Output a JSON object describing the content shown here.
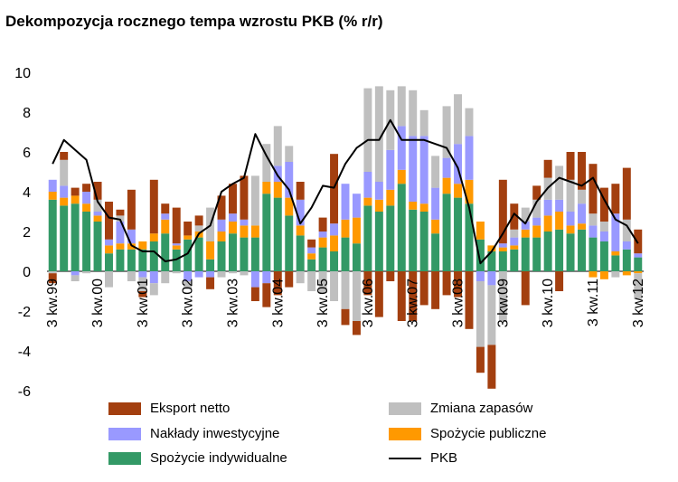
{
  "title": "Dekompozycja rocznego tempa wzrostu PKB (% r/r)",
  "colors": {
    "eksport": "#A33F0F",
    "zapasy": "#BFBFBF",
    "naklady": "#9999FF",
    "publiczne": "#FF9900",
    "indywidualne": "#339966",
    "pkb": "#000000"
  },
  "legend": [
    {
      "key": "eksport",
      "label": "Eksport netto"
    },
    {
      "key": "zapasy",
      "label": "Zmiana zapasów"
    },
    {
      "key": "naklady",
      "label": "Nakłady inwestycyjne"
    },
    {
      "key": "publiczne",
      "label": "Spożycie publiczne"
    },
    {
      "key": "indywidualne",
      "label": "Spożycie indywidualne"
    },
    {
      "key": "pkb",
      "label": "PKB"
    }
  ],
  "chart_data": {
    "type": "bar",
    "stacked": true,
    "title": "Dekompozycja rocznego tempa wzrostu PKB (% r/r)",
    "ylim": [
      -6,
      10
    ],
    "yticks": [
      -6,
      -4,
      -2,
      0,
      2,
      4,
      6,
      8,
      10
    ],
    "xtick_labels": [
      "3 kw.99",
      "3 kw.00",
      "3 kw.01",
      "3 kw.02",
      "3 kw.03",
      "3 kw.04",
      "3 kw.05",
      "3 kw.06",
      "3 kw.07",
      "3 kw.08",
      "3 kw.09",
      "3 kw.10",
      "3 kw.11",
      "3 kw.12"
    ],
    "xtick_every": 4,
    "categories": [
      "3 kw.99",
      "4 kw.99",
      "1 kw.00",
      "2 kw.00",
      "3 kw.00",
      "4 kw.00",
      "1 kw.01",
      "2 kw.01",
      "3 kw.01",
      "4 kw.01",
      "1 kw.02",
      "2 kw.02",
      "3 kw.02",
      "4 kw.02",
      "1 kw.03",
      "2 kw.03",
      "3 kw.03",
      "4 kw.03",
      "1 kw.04",
      "2 kw.04",
      "3 kw.04",
      "4 kw.04",
      "1 kw.05",
      "2 kw.05",
      "3 kw.05",
      "4 kw.05",
      "1 kw.06",
      "2 kw.06",
      "3 kw.06",
      "4 kw.06",
      "1 kw.07",
      "2 kw.07",
      "3 kw.07",
      "4 kw.07",
      "1 kw.08",
      "2 kw.08",
      "3 kw.08",
      "4 kw.08",
      "1 kw.09",
      "2 kw.09",
      "3 kw.09",
      "4 kw.09",
      "1 kw.10",
      "2 kw.10",
      "3 kw.10",
      "4 kw.10",
      "1 kw.11",
      "2 kw.11",
      "3 kw.11",
      "4 kw.11",
      "1 kw.12",
      "2 kw.12",
      "3 kw.12"
    ],
    "series": [
      {
        "name": "Spożycie indywidualne",
        "key": "indywidualne",
        "values": [
          3.6,
          3.3,
          3.4,
          3.0,
          2.5,
          0.9,
          1.1,
          1.1,
          1.1,
          1.5,
          1.9,
          1.1,
          1.6,
          1.7,
          0.6,
          1.5,
          1.9,
          1.7,
          1.7,
          3.9,
          3.7,
          2.8,
          1.8,
          0.6,
          1.2,
          1.0,
          1.7,
          1.4,
          3.3,
          3.0,
          3.3,
          4.4,
          3.1,
          3.0,
          1.9,
          3.9,
          3.7,
          3.4,
          1.6,
          1.0,
          1.0,
          1.1,
          1.7,
          1.7,
          2.0,
          2.1,
          1.9,
          2.1,
          1.7,
          1.5,
          0.8,
          1.1,
          0.7
        ]
      },
      {
        "name": "Spożycie publiczne",
        "key": "publiczne",
        "values": [
          0.4,
          0.4,
          0.4,
          0.4,
          0.3,
          0.4,
          0.3,
          0.3,
          0.4,
          0.4,
          0.7,
          0.2,
          0.2,
          0.3,
          0.9,
          0.5,
          0.6,
          0.6,
          0.6,
          0.6,
          0.8,
          0.9,
          0.5,
          0.3,
          0.5,
          0.8,
          0.9,
          1.3,
          0.4,
          0.6,
          0.8,
          0.7,
          0.4,
          0.4,
          0.7,
          0.8,
          0.7,
          1.2,
          0.9,
          0.3,
          0.2,
          0.2,
          0.4,
          0.6,
          0.8,
          0.9,
          0.4,
          0.3,
          -0.3,
          -0.4,
          0.2,
          -0.2,
          -0.1
        ]
      },
      {
        "name": "Nakłady inwestycyjne",
        "key": "naklady",
        "values": [
          0.6,
          0.6,
          -0.2,
          0.6,
          0.2,
          0.3,
          1.1,
          0.7,
          -0.3,
          -0.6,
          0.3,
          0.1,
          -0.5,
          -0.3,
          -0.3,
          0.6,
          0.4,
          0.3,
          -0.8,
          -0.6,
          0.8,
          1.8,
          1.3,
          0.3,
          0.3,
          0.6,
          1.8,
          1.2,
          1.3,
          0.9,
          2.0,
          2.2,
          3.3,
          3.4,
          1.6,
          1.0,
          2.0,
          2.2,
          -0.5,
          -0.7,
          0.2,
          0.4,
          0.4,
          0.4,
          0.8,
          0.6,
          0.7,
          1.0,
          0.6,
          0.5,
          1.9,
          0.4,
          0.2
        ]
      },
      {
        "name": "Zmiana zapasów",
        "key": "zapasy",
        "values": [
          -0.1,
          1.3,
          -0.3,
          -0.1,
          0.6,
          -0.8,
          0.3,
          -0.5,
          -0.7,
          -0.6,
          -0.6,
          -0.1,
          -0.4,
          0.3,
          1.7,
          -0.3,
          -0.1,
          -0.2,
          2.5,
          1.9,
          2.0,
          0.8,
          -0.6,
          -1.0,
          -1.1,
          -1.5,
          -1.9,
          -2.5,
          4.2,
          4.8,
          3.0,
          2.0,
          2.3,
          1.3,
          1.6,
          2.6,
          2.5,
          1.4,
          -3.3,
          -3.0,
          -2.5,
          0.4,
          0.7,
          0.9,
          1.1,
          1.7,
          1.6,
          0.7,
          0.6,
          0.5,
          -0.3,
          1.1,
          -1.3
        ]
      },
      {
        "name": "Eksport netto",
        "key": "eksport",
        "values": [
          -0.5,
          0.4,
          0.4,
          0.4,
          0.9,
          1.9,
          0.3,
          2.0,
          -0.3,
          2.7,
          0.5,
          1.8,
          0.7,
          0.5,
          -0.6,
          1.2,
          1.5,
          2.2,
          -0.7,
          -1.2,
          -1.2,
          -0.8,
          0.9,
          0.4,
          0.7,
          3.5,
          -0.8,
          -0.7,
          -1.2,
          -2.3,
          -0.5,
          -2.5,
          -2.5,
          -1.7,
          -1.9,
          -1.2,
          -1.3,
          -2.9,
          -1.3,
          -2.2,
          3.2,
          1.3,
          -1.7,
          0.7,
          0.9,
          -1.0,
          1.4,
          1.9,
          2.5,
          1.7,
          1.5,
          2.6,
          1.2
        ]
      }
    ],
    "line": {
      "name": "PKB",
      "key": "pkb",
      "values": [
        5.4,
        6.6,
        6.1,
        5.6,
        3.5,
        2.7,
        2.6,
        1.3,
        1.0,
        1.0,
        0.5,
        0.6,
        0.9,
        1.9,
        2.3,
        4.0,
        4.4,
        4.7,
        6.9,
        5.8,
        4.8,
        4.1,
        2.4,
        3.2,
        4.3,
        4.2,
        5.4,
        6.2,
        6.6,
        6.6,
        7.6,
        6.6,
        6.6,
        6.6,
        6.4,
        6.2,
        5.2,
        3.2,
        0.4,
        1.0,
        1.9,
        2.9,
        2.4,
        3.5,
        4.2,
        4.7,
        4.5,
        4.3,
        4.7,
        3.6,
        2.6,
        2.3,
        1.4
      ]
    }
  }
}
